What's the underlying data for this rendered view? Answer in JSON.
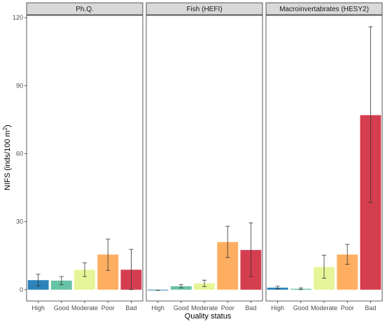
{
  "chart_data": {
    "type": "bar",
    "xlabel": "Quality status",
    "ylabel": "NIFS (inds/100 m2)",
    "ylabel_parts": {
      "main": "NIFS (inds/100 m",
      "sup": "2",
      "end": ")"
    },
    "ylim": [
      -5,
      121
    ],
    "yticks": [
      0,
      30,
      60,
      90,
      120
    ],
    "categories": [
      "High",
      "Good",
      "Moderate",
      "Poor",
      "Bad"
    ],
    "colors": [
      "#2b83ba",
      "#66c2a5",
      "#e6f598",
      "#fdae61",
      "#d53e4f"
    ],
    "grid": false,
    "facets": [
      {
        "title": "Ph.Q.",
        "values": [
          4.2,
          4.0,
          8.8,
          15.5,
          8.8
        ],
        "err_low": [
          1.6,
          2.2,
          5.8,
          8.5,
          0.0
        ],
        "err_high": [
          6.8,
          5.8,
          11.8,
          22.3,
          17.8
        ]
      },
      {
        "title": "Fish (HEFI)",
        "values": [
          -0.3,
          1.5,
          2.8,
          21.0,
          17.5
        ],
        "err_low": [
          -0.3,
          0.8,
          1.3,
          14.2,
          5.8
        ],
        "err_high": [
          -0.3,
          2.2,
          4.2,
          28.0,
          29.5
        ]
      },
      {
        "title": "Macroinvertabrates (HESY2)",
        "values": [
          0.9,
          0.4,
          10.0,
          15.5,
          77.0
        ],
        "err_low": [
          0.3,
          0.0,
          5.0,
          11.2,
          38.5
        ],
        "err_high": [
          1.5,
          0.8,
          15.2,
          20.0,
          116.0
        ]
      }
    ]
  }
}
